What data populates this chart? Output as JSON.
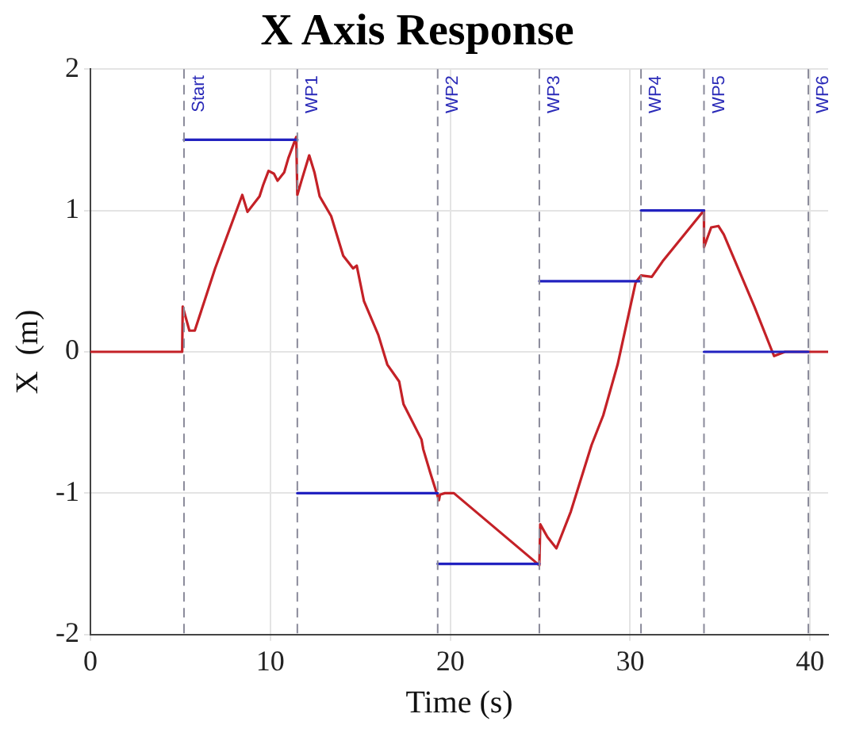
{
  "chart_data": {
    "type": "line",
    "title": "X Axis Response",
    "xlabel": "Time (s)",
    "ylabel": "X  (m)",
    "xlim": [
      0,
      41
    ],
    "xticks": [
      0,
      10,
      20,
      30,
      40
    ],
    "ylim": [
      -2,
      2
    ],
    "yticks": [
      -2,
      -1,
      0,
      1,
      2
    ],
    "grid": true,
    "legend": false,
    "marker": "none",
    "line_style": "solid",
    "series": [
      {
        "color": "#2222c0",
        "x": [
          5.2,
          11.5
        ],
        "values": [
          1.5,
          1.5
        ]
      },
      {
        "color": "#2222c0",
        "x": [
          11.5,
          19.3
        ],
        "values": [
          -1,
          -1
        ]
      },
      {
        "color": "#2222c0",
        "x": [
          19.3,
          24.95
        ],
        "values": [
          -1.5,
          -1.5
        ]
      },
      {
        "color": "#2222c0",
        "x": [
          24.95,
          30.6
        ],
        "values": [
          0.5,
          0.5
        ]
      },
      {
        "color": "#2222c0",
        "x": [
          30.6,
          34.1
        ],
        "values": [
          1,
          1
        ]
      },
      {
        "color": "#2222c0",
        "x": [
          34.1,
          39.9
        ],
        "values": [
          0,
          0
        ]
      },
      {
        "color": "#c42127",
        "x": [
          0,
          5.1,
          5.13,
          5.5,
          5.8,
          6.93,
          8.44,
          8.73,
          9.4,
          9.6,
          9.9,
          10.2,
          10.4,
          10.77,
          11.0,
          11.44,
          11.5,
          11.73,
          12.16,
          12.45,
          12.74,
          13.38,
          14.05,
          14.6,
          14.8,
          15.2,
          16.0,
          16.5,
          17.16,
          17.4,
          18.4,
          18.5,
          18.9,
          19.37,
          19.43,
          19.7,
          20.2,
          24.95,
          25.0,
          25.4,
          25.9,
          26.7,
          27.85,
          28.5,
          29.3,
          30.3,
          30.6,
          31.2,
          31.8,
          34.1,
          34.1,
          34.5,
          34.9,
          35.2,
          36.9,
          37.9,
          38.0,
          38.6,
          41
        ],
        "values": [
          0,
          0,
          0.32,
          0.15,
          0.15,
          0.59,
          1.11,
          0.99,
          1.1,
          1.18,
          1.28,
          1.26,
          1.21,
          1.27,
          1.37,
          1.52,
          1.11,
          1.21,
          1.39,
          1.27,
          1.1,
          0.96,
          0.68,
          0.59,
          0.61,
          0.36,
          0.12,
          -0.09,
          -0.21,
          -0.37,
          -0.62,
          -0.69,
          -0.86,
          -1.05,
          -1.01,
          -1.0,
          -1.0,
          -1.51,
          -1.22,
          -1.31,
          -1.39,
          -1.13,
          -0.66,
          -0.45,
          -0.09,
          0.49,
          0.54,
          0.53,
          0.64,
          1.0,
          0.74,
          0.88,
          0.89,
          0.83,
          0.32,
          0.0,
          -0.03,
          0,
          0
        ]
      }
    ],
    "ref_lines": [
      {
        "axis": "x",
        "value": 5.2,
        "label": "Start",
        "color": "#8a8a9a",
        "line_style": "dashed"
      },
      {
        "axis": "x",
        "value": 11.5,
        "label": "WP1",
        "color": "#8a8a9a",
        "line_style": "dashed"
      },
      {
        "axis": "x",
        "value": 19.3,
        "label": "WP2",
        "color": "#8a8a9a",
        "line_style": "dashed"
      },
      {
        "axis": "x",
        "value": 24.95,
        "label": "WP3",
        "color": "#8a8a9a",
        "line_style": "dashed"
      },
      {
        "axis": "x",
        "value": 30.6,
        "label": "WP4",
        "color": "#8a8a9a",
        "line_style": "dashed"
      },
      {
        "axis": "x",
        "value": 34.1,
        "label": "WP5",
        "color": "#8a8a9a",
        "line_style": "dashed"
      },
      {
        "axis": "x",
        "value": 39.9,
        "label": "WP6",
        "color": "#8a8a9a",
        "line_style": "dashed"
      }
    ]
  }
}
